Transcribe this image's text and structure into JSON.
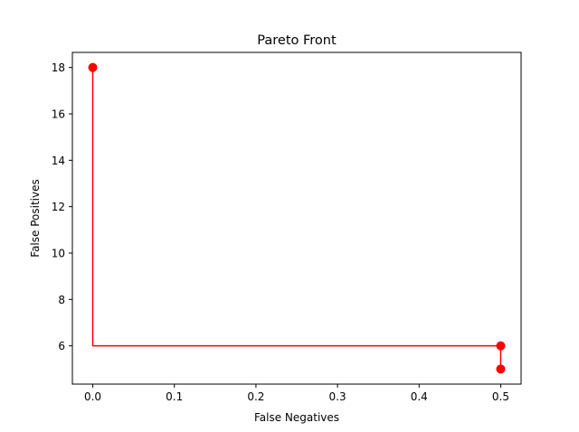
{
  "chart_data": {
    "type": "line",
    "title": "Pareto Front",
    "xlabel": "False Negatives",
    "ylabel": "False Positives",
    "xlim": [
      -0.025,
      0.525
    ],
    "ylim": [
      4.35,
      18.65
    ],
    "x_ticks": [
      0.0,
      0.1,
      0.2,
      0.3,
      0.4,
      0.5
    ],
    "x_tick_labels": [
      "0.0",
      "0.1",
      "0.2",
      "0.3",
      "0.4",
      "0.5"
    ],
    "y_ticks": [
      6,
      8,
      10,
      12,
      14,
      16,
      18
    ],
    "y_tick_labels": [
      "6",
      "8",
      "10",
      "12",
      "14",
      "16",
      "18"
    ],
    "grid": false,
    "series": [
      {
        "color": "#ff0000",
        "line_style": "step",
        "marker": "circle",
        "points": [
          {
            "x": 0.0,
            "y": 18
          },
          {
            "x": 0.5,
            "y": 6
          },
          {
            "x": 0.5,
            "y": 5
          }
        ]
      }
    ]
  }
}
